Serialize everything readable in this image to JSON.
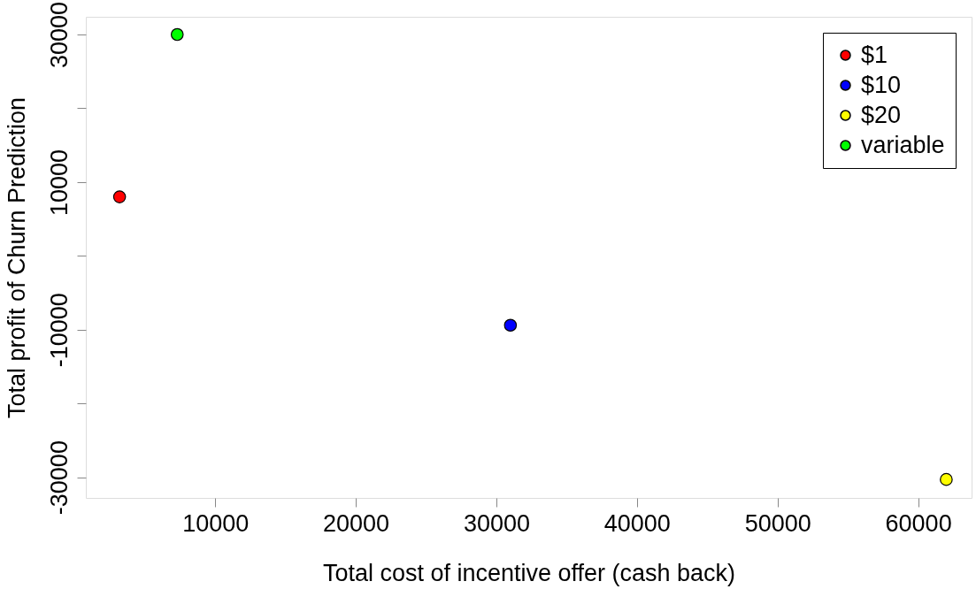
{
  "chart_data": {
    "type": "scatter",
    "xlabel": "Total cost of incentive offer (cash back)",
    "ylabel": "Total profit of Churn Prediction",
    "series": [
      {
        "name": "$1",
        "color": "#ff0000",
        "x": [
          3200
        ],
        "values": [
          8000
        ]
      },
      {
        "name": "$10",
        "color": "#0000ff",
        "x": [
          31000
        ],
        "values": [
          -9400
        ]
      },
      {
        "name": "$20",
        "color": "#ffff00",
        "x": [
          62000
        ],
        "values": [
          -30300
        ]
      },
      {
        "name": "variable",
        "color": "#00ff00",
        "x": [
          7300
        ],
        "values": [
          30000
        ]
      }
    ],
    "xlim": [
      800,
      63800
    ],
    "ylim": [
      -32800,
      32400
    ],
    "xticks": [
      10000,
      20000,
      30000,
      40000,
      50000,
      60000
    ],
    "yticks": [
      {
        "value": -30000,
        "label": "-30000"
      },
      {
        "value": -20000,
        "label": null
      },
      {
        "value": -10000,
        "label": "-10000"
      },
      {
        "value": 0,
        "label": null
      },
      {
        "value": 10000,
        "label": "10000"
      },
      {
        "value": 20000,
        "label": null
      },
      {
        "value": 30000,
        "label": "30000"
      }
    ],
    "grid": false,
    "legend": "top right",
    "marker": "circle"
  }
}
